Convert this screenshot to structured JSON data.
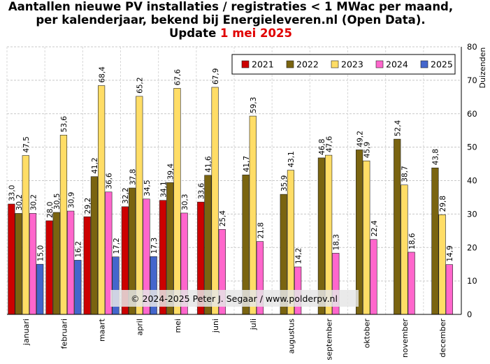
{
  "title": {
    "line1": "Aantallen nieuwe PV installaties  / registraties  < 1 MWac per maand,",
    "line2": "per kalenderjaar, bekend bij Energieleveren.nl (Open Data).",
    "line3_prefix": "Update ",
    "line3_date": "1 mei 2025"
  },
  "watermark": "© 2024-2025 Peter J. Segaar / www.polderpv.nl",
  "colors": {
    "title_date": "#e00000"
  },
  "chart_data": {
    "type": "bar",
    "categories": [
      "januari",
      "februari",
      "maart",
      "april",
      "mei",
      "juni",
      "juli",
      "augustus",
      "september",
      "oktober",
      "november",
      "december"
    ],
    "series": [
      {
        "name": "2021",
        "color": "#cc0000",
        "values": [
          33.0,
          28.0,
          29.2,
          32.2,
          34.1,
          33.6,
          null,
          null,
          null,
          null,
          null,
          null
        ]
      },
      {
        "name": "2022",
        "color": "#7a6410",
        "values": [
          30.2,
          30.5,
          41.2,
          37.8,
          39.4,
          41.6,
          41.7,
          35.9,
          46.8,
          49.2,
          52.4,
          43.8
        ]
      },
      {
        "name": "2023",
        "color": "#ffdd66",
        "values": [
          47.5,
          53.6,
          68.4,
          65.2,
          67.6,
          67.9,
          59.3,
          43.1,
          47.6,
          45.9,
          38.7,
          29.8
        ]
      },
      {
        "name": "2024",
        "color": "#ff66cc",
        "values": [
          30.2,
          30.9,
          36.6,
          34.5,
          30.3,
          25.4,
          21.8,
          14.2,
          18.3,
          22.4,
          18.6,
          14.9
        ]
      },
      {
        "name": "2025",
        "color": "#4466cc",
        "values": [
          15.0,
          16.2,
          17.2,
          17.3,
          null,
          null,
          null,
          null,
          null,
          null,
          null,
          null
        ]
      }
    ],
    "ylabel": "Duizenden",
    "ylim": [
      0,
      80
    ],
    "yticks": [
      0,
      10,
      20,
      30,
      40,
      50,
      60,
      70,
      80
    ],
    "y_axis_side": "right",
    "grid": true,
    "legend_position": "top-right",
    "decimal_separator": ","
  }
}
